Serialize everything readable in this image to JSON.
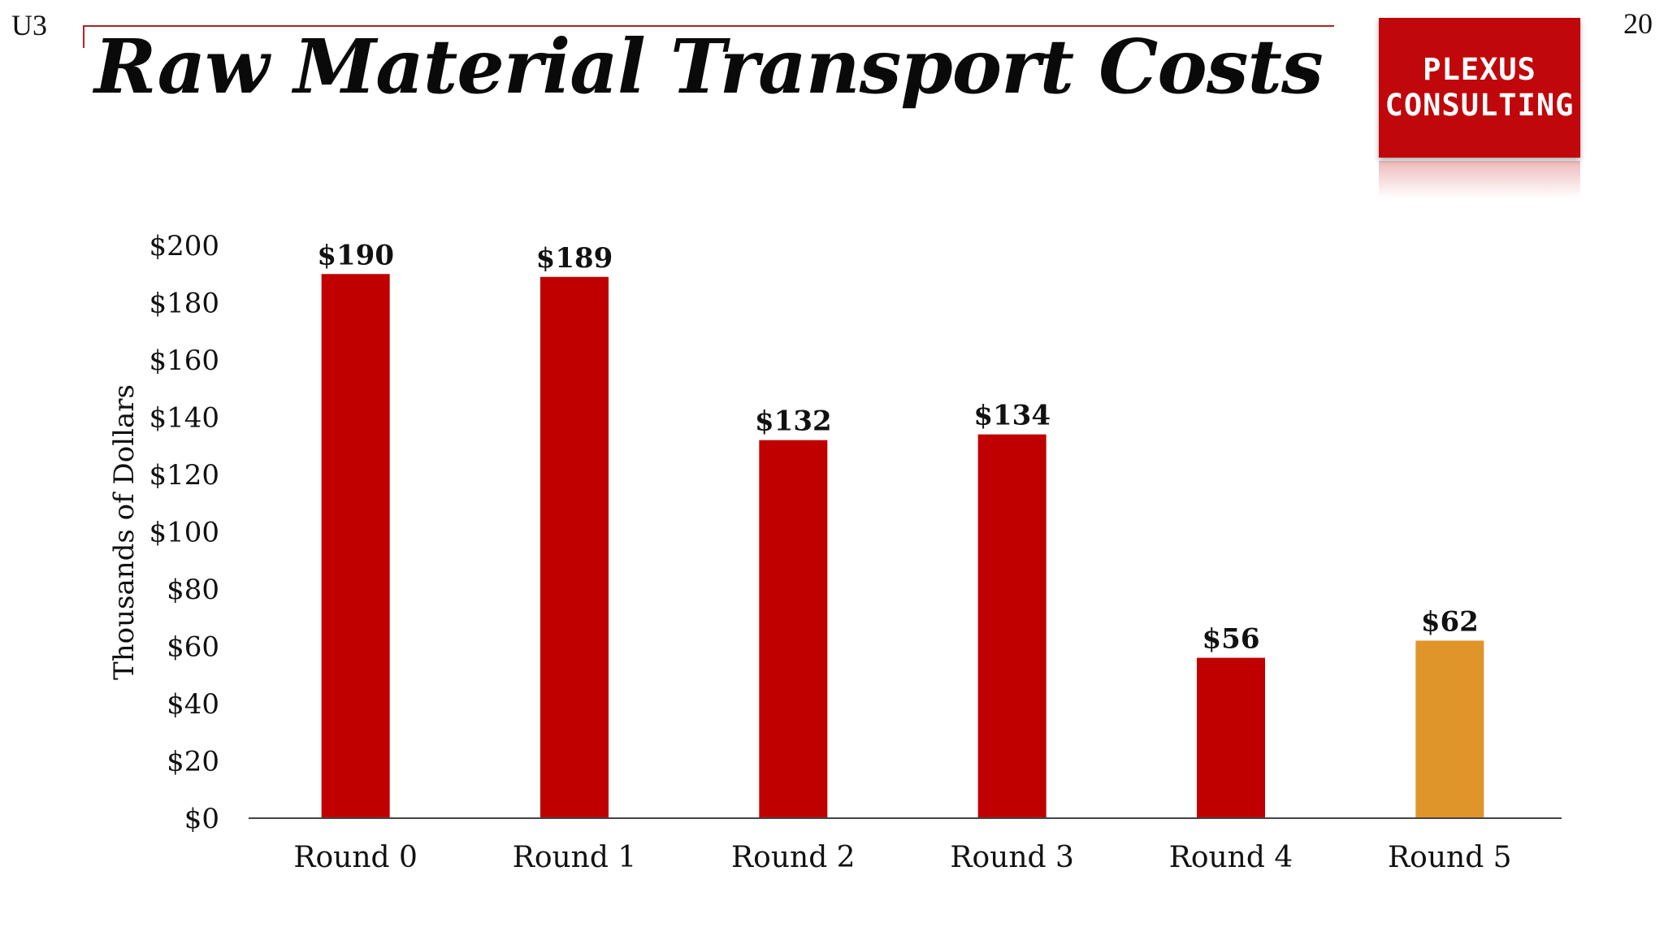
{
  "corner_left": "U3",
  "corner_right": "20",
  "title": "Raw Material Transport Costs",
  "logo": {
    "line1": "PLEXUS",
    "line2": "CONSULTING"
  },
  "colors": {
    "bar": "#c00000",
    "highlight": "#e0952a",
    "logo": "#c0070b",
    "accent_rule": "#b22222"
  },
  "chart_data": {
    "type": "bar",
    "title": "",
    "xlabel": "",
    "ylabel": "Thousands of Dollars",
    "categories": [
      "Round 0",
      "Round 1",
      "Round 2",
      "Round 3",
      "Round 4",
      "Round 5"
    ],
    "values": [
      190,
      189,
      132,
      134,
      56,
      62
    ],
    "data_labels": [
      "$190",
      "$189",
      "$132",
      "$134",
      "$56",
      "$62"
    ],
    "highlighted_category": "Round 5",
    "ylim": [
      0,
      200
    ],
    "y_ticks": [
      0,
      20,
      40,
      60,
      80,
      100,
      120,
      140,
      160,
      180,
      200
    ],
    "y_tick_labels": [
      "$0",
      "$20",
      "$40",
      "$60",
      "$80",
      "$100",
      "$120",
      "$140",
      "$160",
      "$180",
      "$200"
    ],
    "grid": false,
    "legend": "none"
  }
}
